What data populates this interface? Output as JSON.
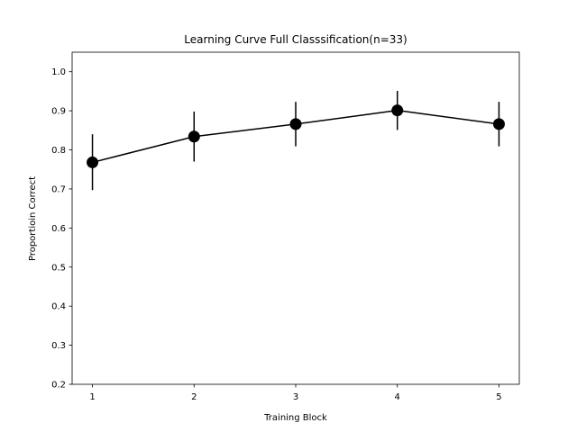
{
  "chart_data": {
    "type": "line",
    "title": "Learning Curve Full Classsification(n=33)",
    "xlabel": "Training Block",
    "ylabel": "Proportioin Correct",
    "x": [
      1,
      2,
      3,
      4,
      5
    ],
    "x_tick_labels": [
      "1",
      "2",
      "3",
      "4",
      "5"
    ],
    "xlim": [
      0.8,
      5.2
    ],
    "ylim": [
      0.2,
      1.05
    ],
    "y_ticks": [
      0.2,
      0.3,
      0.4,
      0.5,
      0.6,
      0.7,
      0.8,
      0.9,
      1.0
    ],
    "y_tick_labels": [
      "0.2",
      "0.3",
      "0.4",
      "0.5",
      "0.6",
      "0.7",
      "0.8",
      "0.9",
      "1.0"
    ],
    "grid": false,
    "series": [
      {
        "values": [
          0.768,
          0.834,
          0.866,
          0.901,
          0.866
        ],
        "error_lower": [
          0.697,
          0.77,
          0.809,
          0.851,
          0.809
        ],
        "error_upper": [
          0.84,
          0.898,
          0.923,
          0.951,
          0.923
        ],
        "color": "#000000"
      }
    ]
  }
}
